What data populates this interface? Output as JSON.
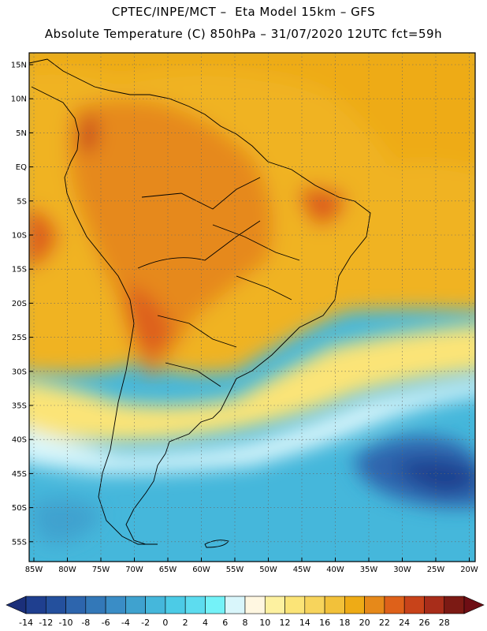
{
  "title_line1": "CPTEC/INPE/MCT –  Eta Model 15km – GFS",
  "title_line2": "Absolute Temperature (C) 850hPa – 31/07/2020 12UTC fct=59h",
  "lat_labels": [
    "15N",
    "10N",
    "5N",
    "EQ",
    "5S",
    "10S",
    "15S",
    "20S",
    "25S",
    "30S",
    "35S",
    "40S",
    "45S",
    "50S",
    "55S"
  ],
  "lon_labels": [
    "85W",
    "80W",
    "75W",
    "70W",
    "65W",
    "60W",
    "55W",
    "50W",
    "45W",
    "40W",
    "35W",
    "30W",
    "25W",
    "20W"
  ],
  "colorbar": {
    "labels": [
      "-14",
      "-12",
      "-10",
      "-8",
      "-6",
      "-4",
      "-2",
      "0",
      "2",
      "4",
      "6",
      "8",
      "10",
      "12",
      "14",
      "16",
      "18",
      "20",
      "22",
      "24",
      "26",
      "28"
    ],
    "colors": [
      "#1f3f8f",
      "#24509d",
      "#2d65ad",
      "#3378b8",
      "#3a8dc6",
      "#3fa2cf",
      "#45b7db",
      "#4ccbe6",
      "#5ddcef",
      "#74f2f8",
      "#d9f6fb",
      "#fff7e1",
      "#fdf1a0",
      "#fbe477",
      "#f7d45c",
      "#f2c13a",
      "#eeab16",
      "#e6891a",
      "#de611a",
      "#c8431a",
      "#a82d1a",
      "#7c1a14"
    ],
    "under_color": "#1b2f7a",
    "over_color": "#6e0e14"
  }
}
